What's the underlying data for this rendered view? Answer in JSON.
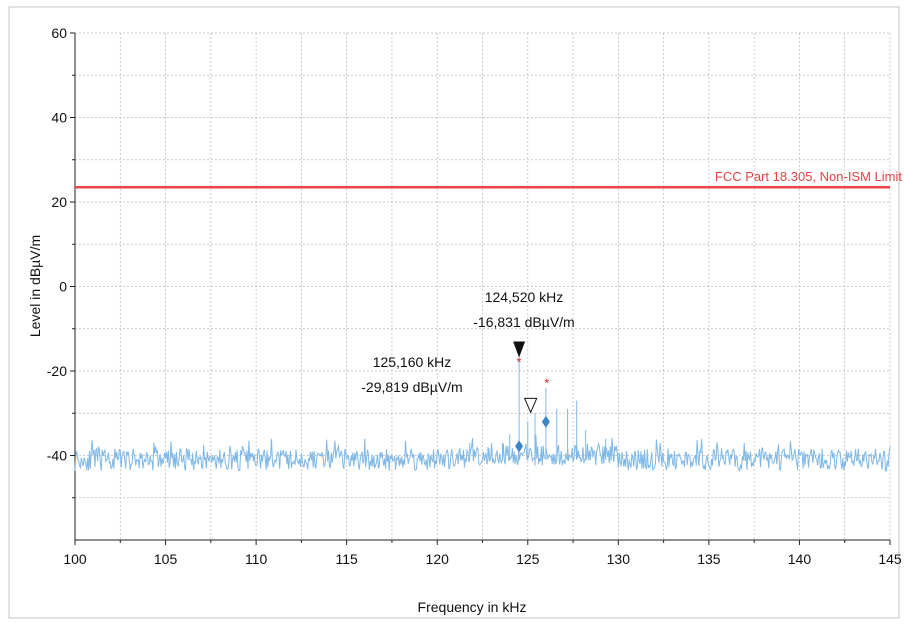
{
  "chart_data": {
    "type": "line",
    "title": "",
    "xlabel": "Frequency in kHz",
    "ylabel": "Level in dBµV/m",
    "xlim": [
      100,
      145
    ],
    "ylim": [
      -60,
      60
    ],
    "x_ticks": [
      100,
      105,
      110,
      115,
      120,
      125,
      130,
      135,
      140,
      145
    ],
    "y_ticks": [
      -40,
      -20,
      0,
      20,
      40,
      60
    ],
    "grid": true,
    "colors": {
      "trace": "#7fb8e6",
      "limit": "#e84545",
      "grid": "#bbbbbb",
      "marker_blue": "#3a86c8",
      "marker_red": "#d62b2b"
    },
    "limit_line": {
      "name": "FCC Part 18.305, Non-ISM Limit",
      "y": 23.5
    },
    "noise_floor": -41,
    "noise_spread": 2.6,
    "peaks": [
      {
        "x": 121.8,
        "y": -37
      },
      {
        "x": 122.8,
        "y": -38
      },
      {
        "x": 123.6,
        "y": -37
      },
      {
        "x": 124.0,
        "y": -35
      },
      {
        "x": 124.52,
        "y": -16.8
      },
      {
        "x": 125.0,
        "y": -32
      },
      {
        "x": 125.4,
        "y": -30
      },
      {
        "x": 126.0,
        "y": -24
      },
      {
        "x": 126.6,
        "y": -29
      },
      {
        "x": 127.2,
        "y": -29
      },
      {
        "x": 127.7,
        "y": -27
      },
      {
        "x": 128.2,
        "y": -34
      },
      {
        "x": 129.3,
        "y": -36
      }
    ],
    "markers": [
      {
        "x": 124.52,
        "y": -16.8,
        "shape": "filled-triangle-down",
        "label_freq": "124,520 kHz",
        "label_level": "-16,831 dBµV/m"
      },
      {
        "x": 125.16,
        "y": -29.8,
        "shape": "open-triangle-down",
        "label_freq": "125,160 kHz",
        "label_level": "-29,819 dBµV/m"
      },
      {
        "x": 124.52,
        "y": -37.8,
        "shape": "blue-diamond"
      },
      {
        "x": 126.0,
        "y": -32.0,
        "shape": "blue-diamond"
      },
      {
        "x": 124.52,
        "y": -17.5,
        "shape": "red-asterisk"
      },
      {
        "x": 126.05,
        "y": -22.5,
        "shape": "red-asterisk"
      }
    ]
  }
}
